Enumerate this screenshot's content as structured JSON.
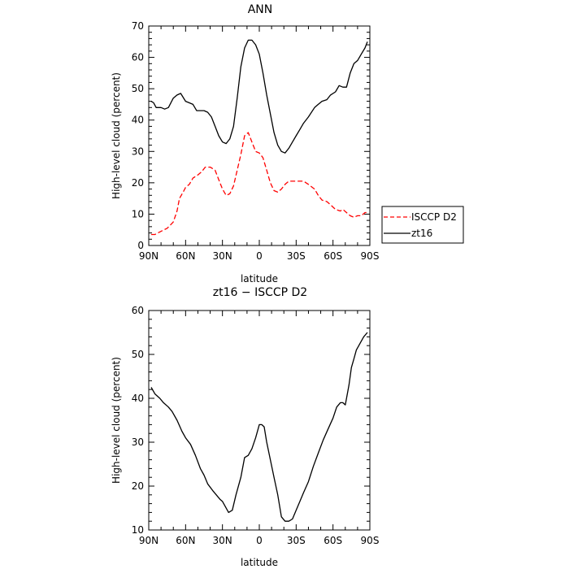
{
  "chart_data": [
    {
      "type": "line",
      "title": "ANN",
      "xlabel": "latitude",
      "ylabel": "High-level cloud (percent)",
      "xlim": [
        90,
        -90
      ],
      "ylim": [
        0,
        70
      ],
      "xticks": [
        90,
        60,
        30,
        0,
        -30,
        -60,
        -90
      ],
      "xtick_labels": [
        "90N",
        "60N",
        "30N",
        "0",
        "30S",
        "60S",
        "90S"
      ],
      "yticks": [
        0,
        10,
        20,
        30,
        40,
        50,
        60,
        70
      ],
      "ytick_labels": [
        "0",
        "10",
        "20",
        "30",
        "40",
        "50",
        "60",
        "70"
      ],
      "grid": false,
      "legend": "right",
      "series": [
        {
          "name": "ISCCP D2",
          "color": "#ff0000",
          "dash": "dashed",
          "x": [
            88,
            85,
            80,
            75,
            70,
            67,
            65,
            62,
            60,
            57,
            54,
            50,
            47,
            44,
            40,
            36,
            33,
            30,
            27,
            24,
            21,
            18,
            15,
            12,
            9,
            6,
            3,
            0,
            -3,
            -6,
            -9,
            -12,
            -15,
            -18,
            -21,
            -24,
            -27,
            -30,
            -33,
            -36,
            -40,
            -45,
            -48,
            -51,
            -55,
            -58,
            -62,
            -66,
            -68,
            -71,
            -74,
            -77,
            -80,
            -83,
            -86,
            -88
          ],
          "y": [
            3.5,
            3.5,
            4.5,
            5.5,
            7.5,
            11,
            15,
            17,
            18.5,
            19.5,
            21.5,
            22.5,
            23.5,
            25,
            25,
            24,
            21,
            18,
            16,
            16.5,
            19,
            24,
            29,
            35,
            36,
            33,
            30,
            29.5,
            28,
            24,
            20,
            17.5,
            17,
            18,
            19.5,
            20.5,
            20.5,
            20.5,
            20.5,
            20.5,
            19.5,
            18,
            16,
            14.5,
            14,
            13,
            11.5,
            11,
            11.5,
            10.5,
            9.5,
            9,
            9.5,
            9.5,
            10.5,
            10.5
          ]
        },
        {
          "name": "zt16",
          "color": "#000000",
          "dash": "solid",
          "x": [
            88,
            86,
            84,
            80,
            77,
            74,
            70,
            67,
            64,
            60,
            57,
            54,
            51,
            48,
            45,
            42,
            39,
            36,
            33,
            30,
            27,
            24,
            21,
            18,
            15,
            12,
            9,
            6,
            3,
            0,
            -3,
            -6,
            -9,
            -12,
            -15,
            -18,
            -21,
            -24,
            -27,
            -30,
            -33,
            -36,
            -40,
            -45,
            -48,
            -51,
            -55,
            -58,
            -62,
            -65,
            -68,
            -71,
            -74,
            -77,
            -80,
            -83,
            -86,
            -88
          ],
          "y": [
            46,
            45.5,
            44,
            44,
            43.5,
            44,
            47,
            48,
            48.5,
            46,
            45.5,
            45,
            43,
            43,
            43,
            42.5,
            41,
            38,
            35,
            33,
            32.5,
            34,
            38,
            47,
            57,
            63,
            65.5,
            65.5,
            64,
            61,
            55,
            48,
            42,
            36,
            32,
            30,
            29.5,
            31,
            33,
            35,
            37,
            39,
            41,
            44,
            45,
            46,
            46.5,
            48,
            49,
            51,
            50.5,
            50.5,
            55,
            58,
            59,
            61,
            63,
            65
          ]
        }
      ]
    },
    {
      "type": "line",
      "title": "zt16 − ISCCP D2",
      "xlabel": "latitude",
      "ylabel": "High-level cloud (percent)",
      "xlim": [
        90,
        -90
      ],
      "ylim": [
        10,
        60
      ],
      "xticks": [
        90,
        60,
        30,
        0,
        -30,
        -60,
        -90
      ],
      "xtick_labels": [
        "90N",
        "60N",
        "30N",
        "0",
        "30S",
        "60S",
        "90S"
      ],
      "yticks": [
        10,
        20,
        30,
        40,
        50,
        60
      ],
      "ytick_labels": [
        "10",
        "20",
        "30",
        "40",
        "50",
        "60"
      ],
      "grid": false,
      "series": [
        {
          "color": "#000000",
          "dash": "solid",
          "x": [
            88,
            85,
            81,
            78,
            74,
            71,
            67,
            63,
            60,
            56,
            52,
            48,
            45,
            42,
            38,
            35,
            32,
            30,
            28,
            25,
            22,
            19,
            15,
            12,
            9,
            6,
            3,
            0,
            -2,
            -4,
            -6,
            -9,
            -12,
            -15,
            -18,
            -21,
            -24,
            -27,
            -30,
            -33,
            -36,
            -40,
            -44,
            -48,
            -52,
            -56,
            -60,
            -63,
            -66,
            -68,
            -70,
            -73,
            -75,
            -77,
            -79,
            -81,
            -83,
            -85,
            -88
          ],
          "y": [
            42.5,
            41,
            40,
            39,
            38,
            37,
            35,
            32.5,
            31,
            29.5,
            27,
            24,
            22.5,
            20.5,
            19,
            18,
            17,
            16.5,
            15.5,
            14,
            14.5,
            18,
            22,
            26.5,
            27,
            28.5,
            31,
            34,
            34,
            33.5,
            30,
            26,
            22,
            18,
            13,
            12,
            12,
            12.5,
            14.5,
            16.5,
            18.5,
            21,
            24.5,
            27.5,
            30.5,
            33,
            35.5,
            38,
            39,
            39,
            38.5,
            43,
            47,
            49,
            51,
            52,
            53,
            54,
            55
          ]
        }
      ]
    }
  ]
}
